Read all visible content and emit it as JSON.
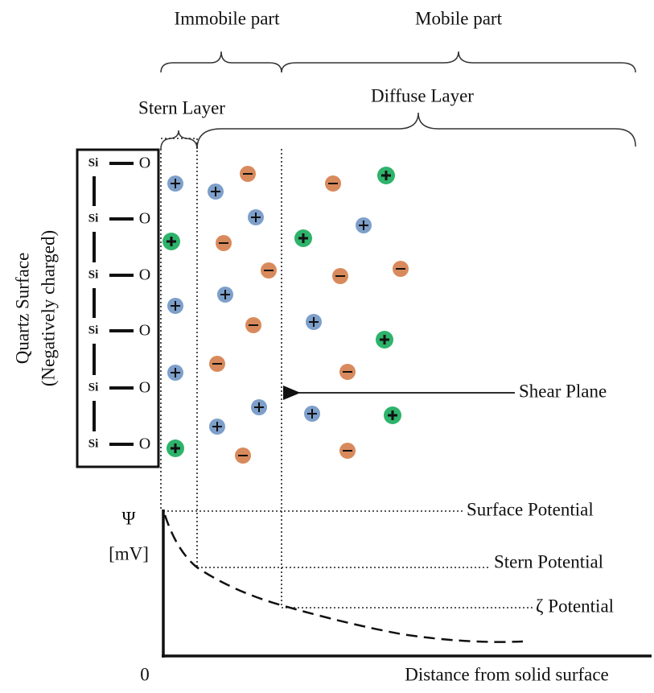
{
  "header": {
    "immobile": "Immobile part",
    "mobile": "Mobile part",
    "stern_layer": "Stern Layer",
    "diffuse_layer": "Diffuse Layer"
  },
  "surface": {
    "label": "Quartz Surface",
    "sublabel": "(Negatively charged)",
    "atoms": [
      {
        "si": "Si",
        "o": "O"
      },
      {
        "si": "Si",
        "o": "O"
      },
      {
        "si": "Si",
        "o": "O"
      },
      {
        "si": "Si",
        "o": "O"
      },
      {
        "si": "Si",
        "o": "O"
      },
      {
        "si": "Si",
        "o": "O"
      }
    ]
  },
  "annotations": {
    "shear_plane": "Shear Plane",
    "surface_potential": "Surface Potential",
    "stern_potential": "Stern Potential",
    "zeta_potential": "ζ Potential"
  },
  "axes": {
    "y_symbol": "Ψ",
    "y_unit": "[mV]",
    "origin": "0",
    "x_label": "Distance from solid surface"
  }
}
